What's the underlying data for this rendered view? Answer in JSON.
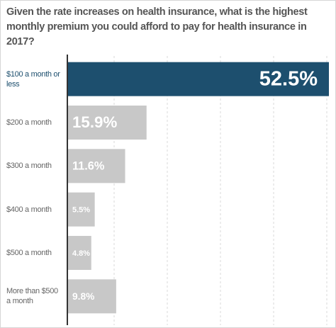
{
  "chart_data": {
    "type": "bar",
    "title": "Given the rate increases on health insurance, what is the highest monthly premium you could afford to pay for health insurance in 2017?",
    "categories": [
      "$100 a month or less",
      "$200 a month",
      "$300 a month",
      "$400 a month",
      "$500 a month",
      "More than $500 a month"
    ],
    "values": [
      52.5,
      15.9,
      11.6,
      5.5,
      4.8,
      9.8
    ],
    "value_labels": [
      "52.5%",
      "15.9%",
      "11.6%",
      "5.5%",
      "4.8%",
      "9.8%"
    ],
    "colors": [
      "#1d4f6e",
      "#c8c8c8",
      "#c8c8c8",
      "#c8c8c8",
      "#c8c8c8",
      "#c8c8c8"
    ],
    "xlim": [
      0,
      52.5
    ]
  }
}
